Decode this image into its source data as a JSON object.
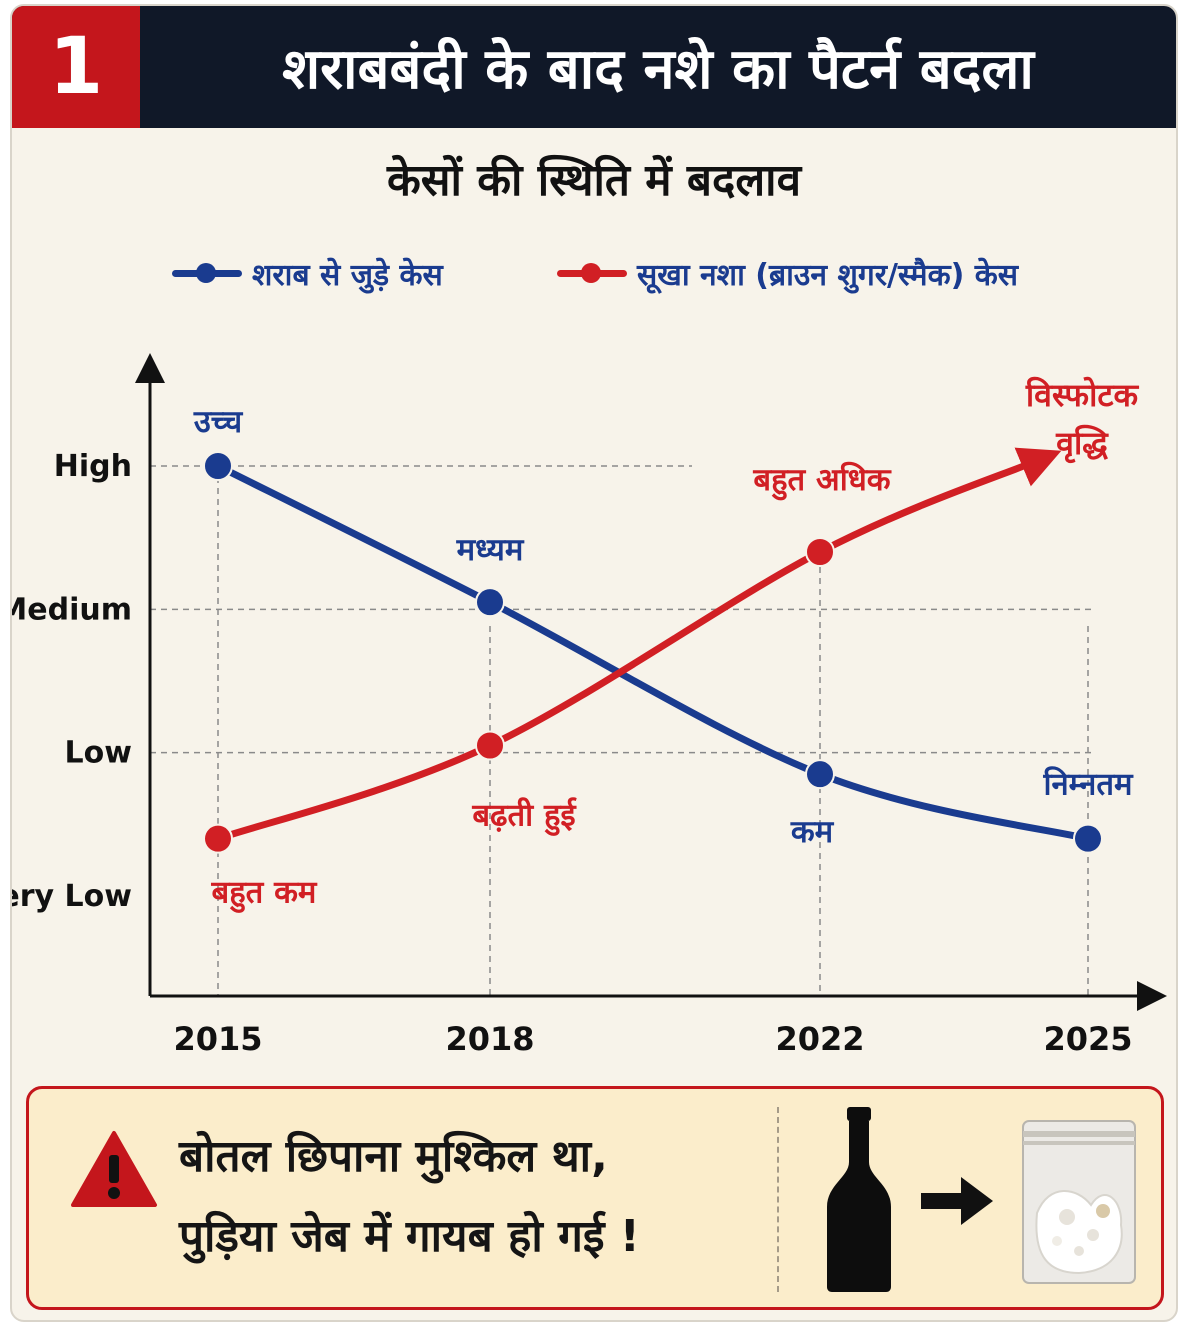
{
  "header": {
    "number": "1",
    "title": "शराबबंदी के बाद नशे का पैटर्न बदला"
  },
  "subtitle": "केसों की स्थिति में बदलाव",
  "colors": {
    "accent_red": "#c4161c",
    "series_blue": "#1a3b8f",
    "series_red": "#d11f24",
    "header_bg": "#101828"
  },
  "chart_data": {
    "type": "line",
    "x": [
      "2015",
      "2018",
      "2022",
      "2025"
    ],
    "y_levels": [
      "Very Low",
      "Low",
      "Medium",
      "High"
    ],
    "ylim": [
      0,
      3
    ],
    "grid": "dashed",
    "series": [
      {
        "name": "शराब से जुड़े केस",
        "color": "#1a3b8f",
        "values": [
          3.0,
          2.05,
          0.85,
          0.4
        ],
        "labels": [
          "उच्च",
          "मध्यम",
          "कम",
          "निम्नतम"
        ]
      },
      {
        "name": "सूखा नशा (ब्राउन शुगर/स्मैक) केस",
        "color": "#d11f24",
        "values": [
          0.4,
          1.05,
          2.4,
          3.05
        ],
        "labels": [
          "बहुत कम",
          "बढ़ती हुई",
          "बहुत अधिक",
          ""
        ]
      }
    ],
    "annotation": {
      "line1": "विस्फोटक",
      "line2": "वृद्धि"
    }
  },
  "warning": {
    "icon": "warning-triangle-icon",
    "line1": "बोतल छिपाना मुश्किल था,",
    "line2": "पुड़िया जेब में गायब हो गई !",
    "images": [
      "bottle-icon",
      "arrow-right-icon",
      "powder-pouch-icon"
    ]
  }
}
